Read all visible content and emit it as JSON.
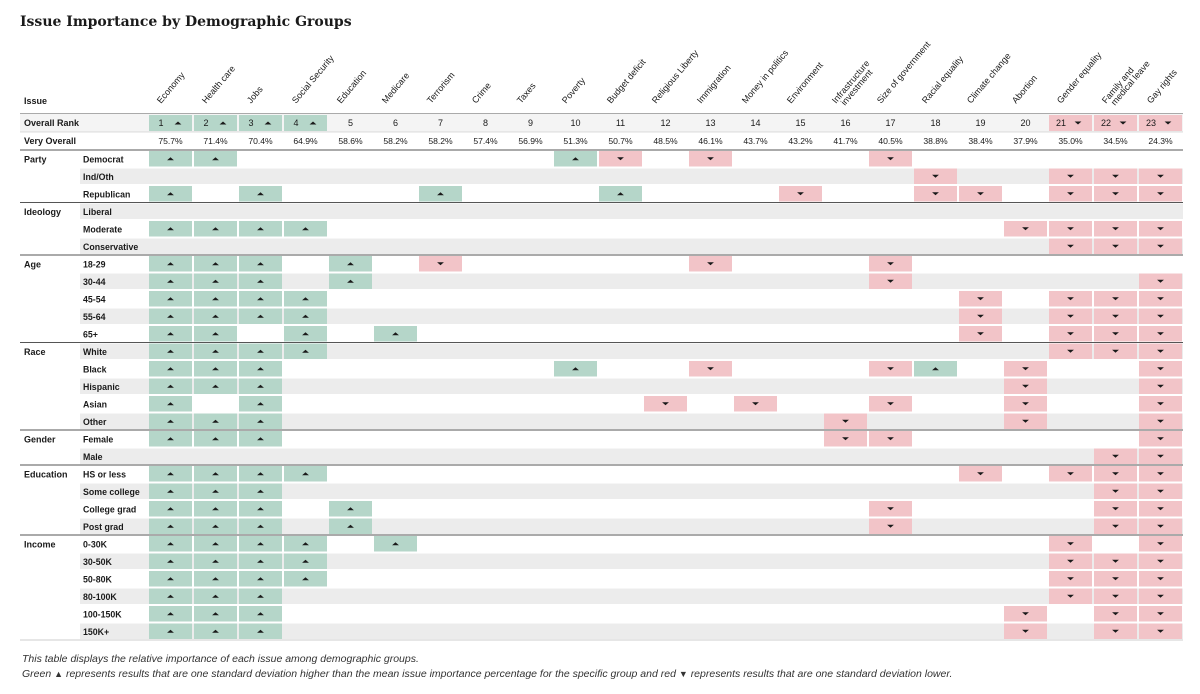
{
  "title": "Issue Importance by Demographic Groups",
  "header": {
    "issue_label": "Issue",
    "overall_rank_label": "Overall Rank",
    "very_overall_label": "Very Overall"
  },
  "colors": {
    "up": "#b5d6c9",
    "down": "#f2c4c8",
    "band": "#ececec",
    "up_mark": "#1a1a1a"
  },
  "notes": {
    "line1": "This table displays the relative importance of each issue among demographic groups.",
    "line2_a": "Green",
    "line2_b": "represents results that are one standard deviation higher than the mean issue importance percentage for the specific group and red",
    "line2_c": "represents results that are one standard deviation lower."
  },
  "chart_data": {
    "type": "table",
    "issues": [
      "Economy",
      "Health care",
      "Jobs",
      "Social Security",
      "Education",
      "Medicare",
      "Terrorism",
      "Crime",
      "Taxes",
      "Poverty",
      "Budget deficit",
      "Religious Liberty",
      "Immigration",
      "Money in politics",
      "Environment",
      "Infrastructure investment",
      "Size of government",
      "Racial equality",
      "Climate change",
      "Abortion",
      "Gender equality",
      "Family and medical leave",
      "Gay rights"
    ],
    "ranks": [
      1,
      2,
      3,
      4,
      5,
      6,
      7,
      8,
      9,
      10,
      11,
      12,
      13,
      14,
      15,
      16,
      17,
      18,
      19,
      20,
      21,
      22,
      23
    ],
    "rank_marks": [
      "U",
      "U",
      "U",
      "U",
      "",
      "",
      "",
      "",
      "",
      "",
      "",
      "",
      "",
      "",
      "",
      "",
      "",
      "",
      "",
      "",
      "D",
      "D",
      "D"
    ],
    "very_overall": [
      "75.7%",
      "71.4%",
      "70.4%",
      "64.9%",
      "58.6%",
      "58.2%",
      "58.2%",
      "57.4%",
      "56.9%",
      "51.3%",
      "50.7%",
      "48.5%",
      "46.1%",
      "43.7%",
      "43.2%",
      "41.7%",
      "40.5%",
      "38.8%",
      "38.4%",
      "37.9%",
      "35.0%",
      "34.5%",
      "24.3%"
    ],
    "legend": {
      "U": "one standard deviation higher",
      "D": "one standard deviation lower"
    },
    "groups": [
      {
        "name": "Party",
        "rows": [
          {
            "label": "Democrat",
            "cells": "UU.......UD.D...D......"
          },
          {
            "label": "Ind/Oth",
            "cells": ".................D..DDD"
          },
          {
            "label": "Republican",
            "cells": "U.U...U...U...D..DD.DDD"
          }
        ]
      },
      {
        "name": "Ideology",
        "rows": [
          {
            "label": "Liberal",
            "cells": "......................."
          },
          {
            "label": "Moderate",
            "cells": "UUUU...............DDDD"
          },
          {
            "label": "Conservative",
            "cells": "....................DDD"
          }
        ]
      },
      {
        "name": "Age",
        "rows": [
          {
            "label": "18-29",
            "cells": "UUU.U.D.....D...D......"
          },
          {
            "label": "30-44",
            "cells": "UUU.U...........D.....D"
          },
          {
            "label": "45-54",
            "cells": "UUUU..............D.DDD"
          },
          {
            "label": "55-64",
            "cells": "UUUU..............D.DDD"
          },
          {
            "label": "65+",
            "cells": "UU.U.U............D.DDD"
          }
        ]
      },
      {
        "name": "Race",
        "rows": [
          {
            "label": "White",
            "cells": "UUUU................DDD"
          },
          {
            "label": "Black",
            "cells": "UUU......U..D...DU.D..D"
          },
          {
            "label": "Hispanic",
            "cells": "UUU................D..D"
          },
          {
            "label": "Asian",
            "cells": "U.U........D.D..D..D..D"
          },
          {
            "label": "Other",
            "cells": "UUU............D...D..D"
          }
        ]
      },
      {
        "name": "Gender",
        "rows": [
          {
            "label": "Female",
            "cells": "UUU............DD.....D"
          },
          {
            "label": "Male",
            "cells": ".....................DD"
          }
        ]
      },
      {
        "name": "Education",
        "rows": [
          {
            "label": "HS or less",
            "cells": "UUUU..............D.DDD"
          },
          {
            "label": "Some college",
            "cells": "UUU..................DD"
          },
          {
            "label": "College grad",
            "cells": "UUU.U...........D....DD"
          },
          {
            "label": "Post grad",
            "cells": "UUU.U...........D....DD"
          }
        ]
      },
      {
        "name": "Income",
        "rows": [
          {
            "label": "0-30K",
            "cells": "UUUU.U..............D.D"
          },
          {
            "label": "30-50K",
            "cells": "UUUU................DDD"
          },
          {
            "label": "50-80K",
            "cells": "UUUU................DDD"
          },
          {
            "label": "80-100K",
            "cells": "UUU.................DDD"
          },
          {
            "label": "100-150K",
            "cells": "UUU................D.DD"
          },
          {
            "label": "150K+",
            "cells": "UUU................D.DD"
          }
        ]
      }
    ]
  }
}
